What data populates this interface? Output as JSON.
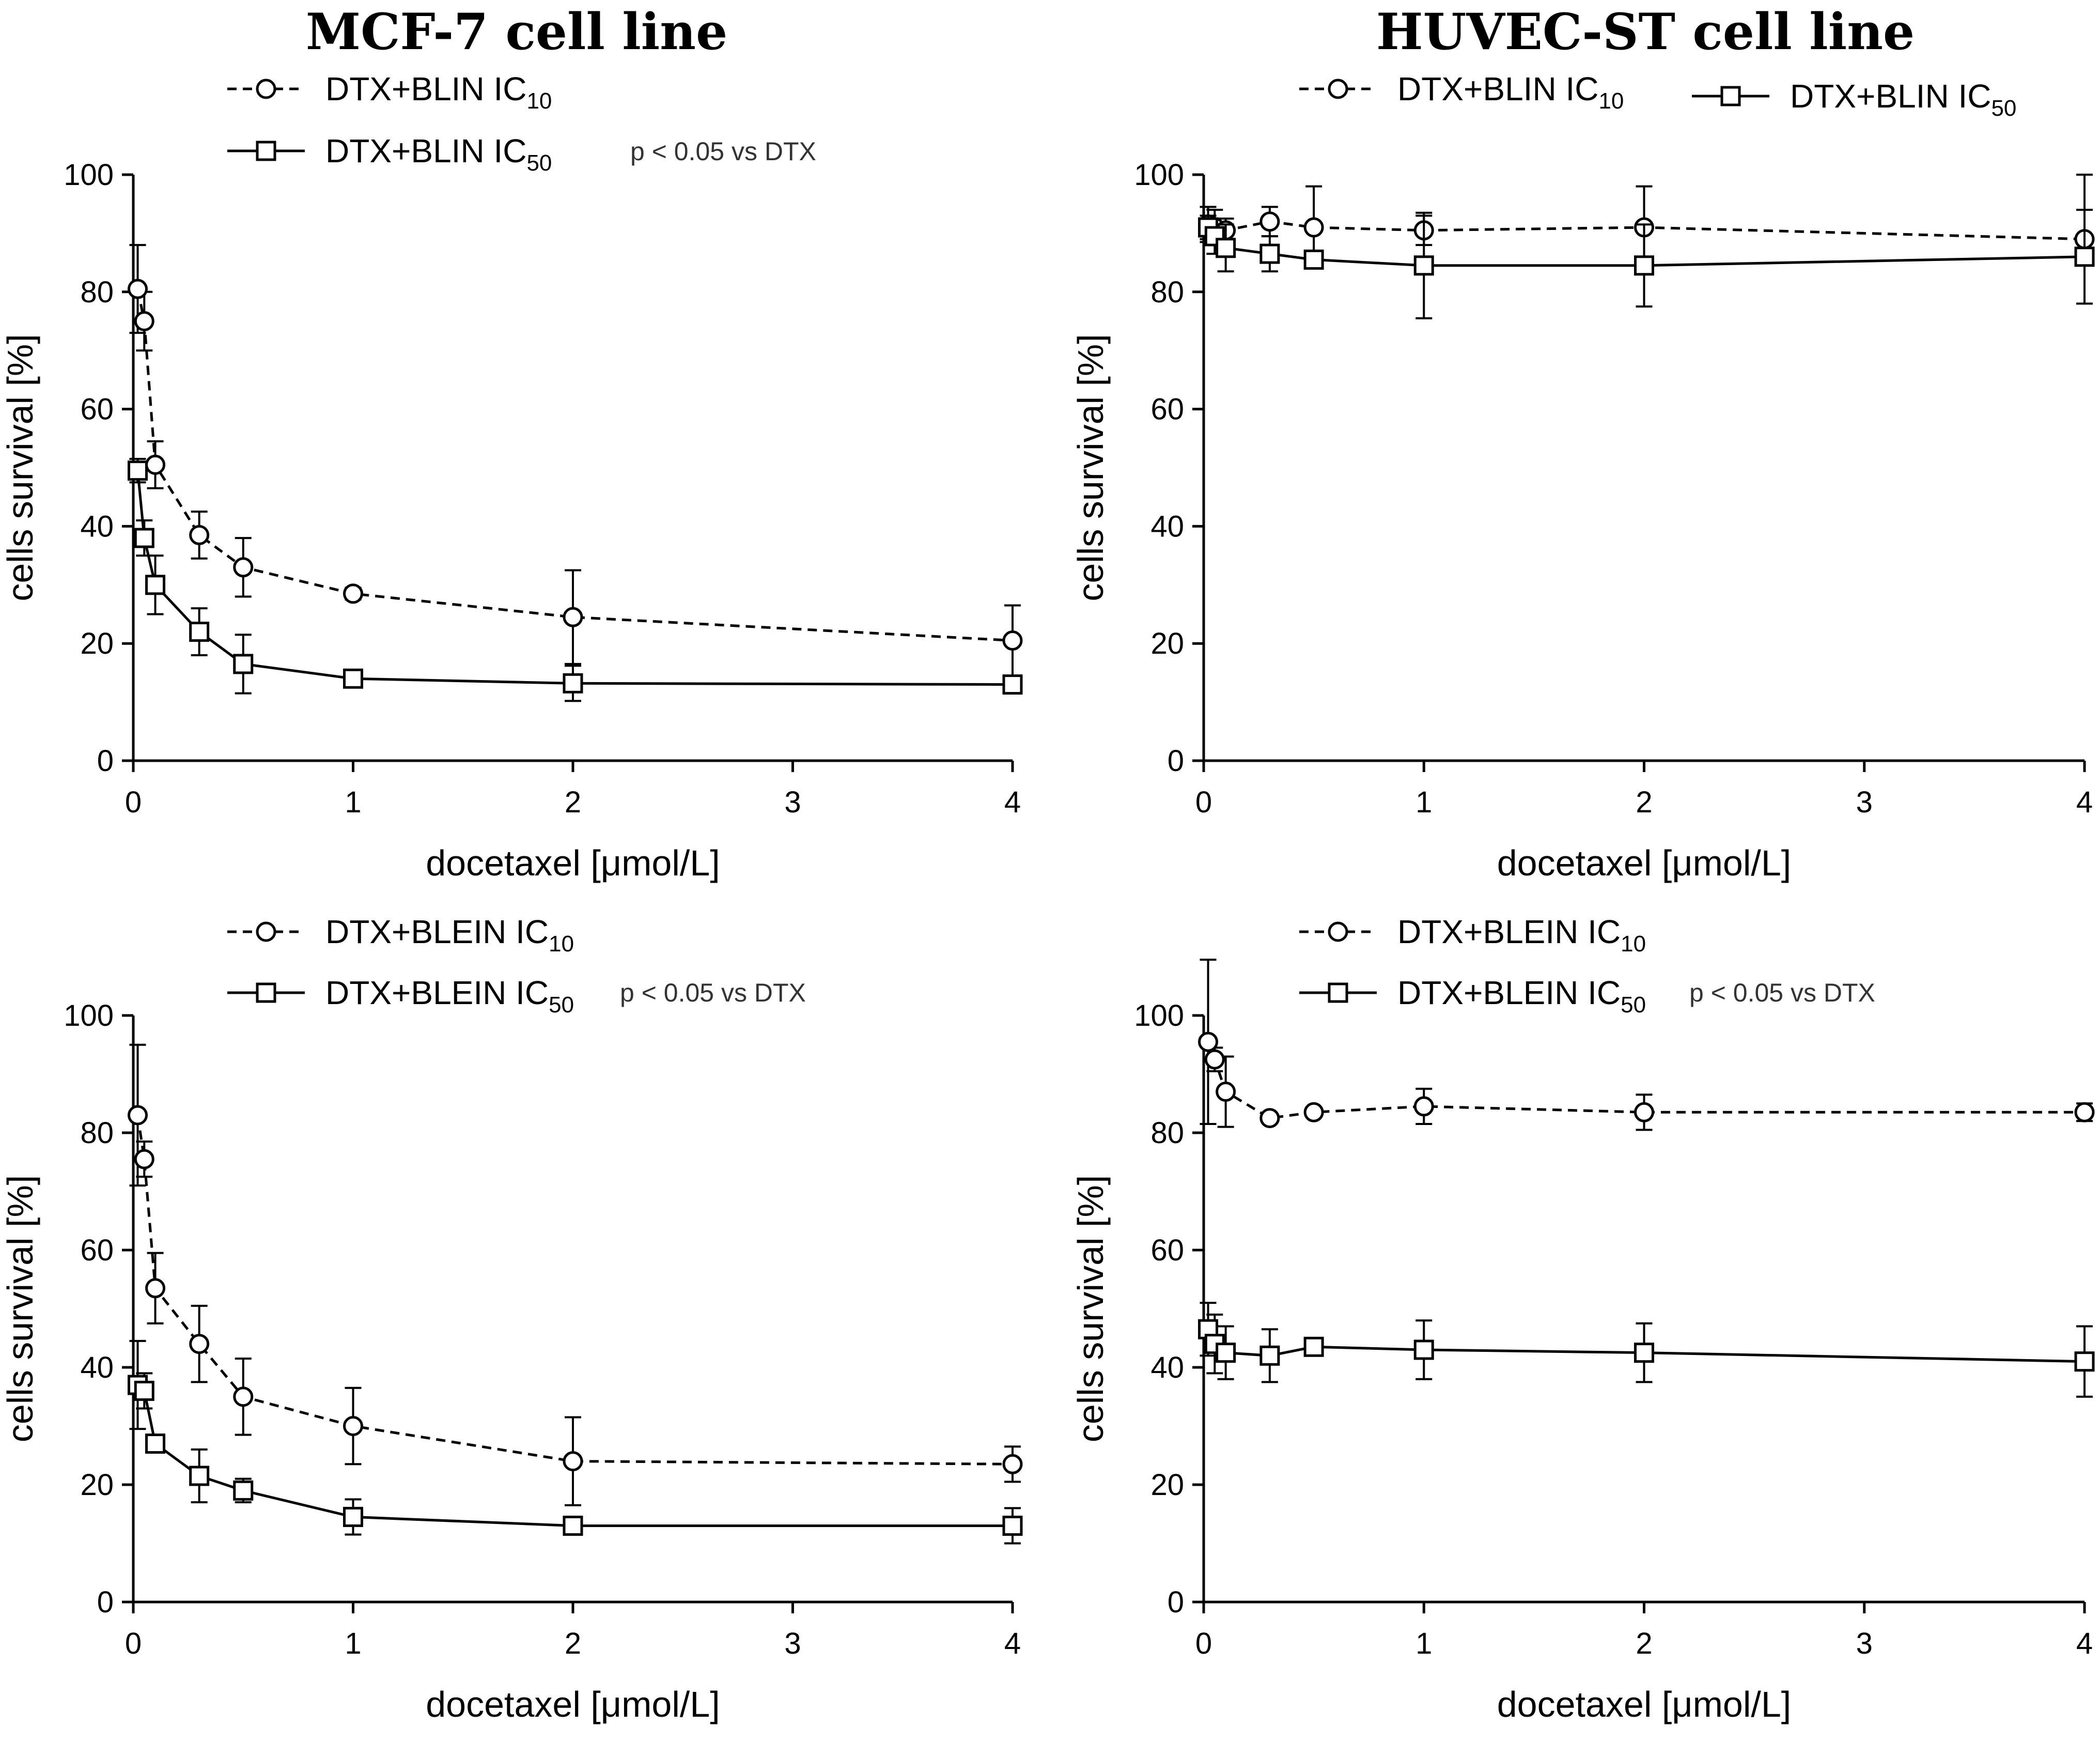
{
  "column_titles": [
    "MCF-7 cell line",
    "HUVEC-ST cell line"
  ],
  "chart_data": [
    {
      "type": "line",
      "title": "MCF-7 cell line",
      "xlabel": "docetaxel [μmol/L]",
      "ylabel": "cells survival [%]",
      "xlim": [
        0,
        4
      ],
      "ylim": [
        0,
        100
      ],
      "xticks": [
        0,
        1,
        2,
        3,
        4
      ],
      "yticks": [
        0,
        20,
        40,
        60,
        80,
        100
      ],
      "annotation": "p < 0.05 vs DTX",
      "series": [
        {
          "name": "DTX+BLIN IC10",
          "label_main": "DTX+BLIN IC",
          "label_sub": "10",
          "marker": "circle",
          "style": "dashed",
          "x": [
            0.02,
            0.05,
            0.1,
            0.3,
            0.5,
            1,
            2,
            4
          ],
          "y": [
            80.5,
            75,
            50.5,
            38.5,
            33,
            28.5,
            24.5,
            20.5
          ],
          "err": [
            7.5,
            5,
            4,
            4,
            5,
            1,
            8,
            6
          ]
        },
        {
          "name": "DTX+BLIN IC50",
          "label_main": "DTX+BLIN IC",
          "label_sub": "50",
          "marker": "square",
          "style": "solid",
          "x": [
            0.02,
            0.05,
            0.1,
            0.3,
            0.5,
            1,
            2,
            4
          ],
          "y": [
            49.5,
            38,
            30,
            22,
            16.5,
            14,
            13.2,
            13
          ],
          "err": [
            2,
            3,
            5,
            4,
            5,
            1,
            3,
            1
          ]
        }
      ]
    },
    {
      "type": "line",
      "title": "HUVEC-ST cell line",
      "xlabel": "docetaxel [μmol/L]",
      "ylabel": "cells survival [%]",
      "xlim": [
        0,
        4
      ],
      "ylim": [
        0,
        100
      ],
      "xticks": [
        0,
        1,
        2,
        3,
        4
      ],
      "yticks": [
        0,
        20,
        40,
        60,
        80,
        100
      ],
      "annotation": "",
      "series": [
        {
          "name": "DTX+BLIN IC10",
          "label_main": "DTX+BLIN IC",
          "label_sub": "10",
          "marker": "circle",
          "style": "dashed",
          "x": [
            0.02,
            0.05,
            0.1,
            0.3,
            0.5,
            1,
            2,
            4
          ],
          "y": [
            91.5,
            91,
            90.5,
            92,
            91,
            90.5,
            91,
            89
          ],
          "err": [
            3,
            3,
            2,
            2.5,
            7,
            2.5,
            7,
            11
          ]
        },
        {
          "name": "DTX+BLIN IC50",
          "label_main": "DTX+BLIN IC",
          "label_sub": "50",
          "marker": "square",
          "style": "solid",
          "x": [
            0.02,
            0.05,
            0.1,
            0.3,
            0.5,
            1,
            2,
            4
          ],
          "y": [
            91,
            89.5,
            87.5,
            86.5,
            85.5,
            84.5,
            84.5,
            86
          ],
          "err": [
            2,
            3,
            4,
            3,
            1,
            9,
            7,
            8
          ]
        }
      ]
    },
    {
      "type": "line",
      "title": "",
      "xlabel": "docetaxel [μmol/L]",
      "ylabel": "cells survival [%]",
      "xlim": [
        0,
        4
      ],
      "ylim": [
        0,
        100
      ],
      "xticks": [
        0,
        1,
        2,
        3,
        4
      ],
      "yticks": [
        0,
        20,
        40,
        60,
        80,
        100
      ],
      "annotation": "p < 0.05 vs DTX",
      "series": [
        {
          "name": "DTX+BLEIN IC10",
          "label_main": "DTX+BLEIN IC",
          "label_sub": "10",
          "marker": "circle",
          "style": "dashed",
          "x": [
            0.02,
            0.05,
            0.1,
            0.3,
            0.5,
            1,
            2,
            4
          ],
          "y": [
            83,
            75.5,
            53.5,
            44,
            35,
            30,
            24,
            23.5
          ],
          "err": [
            12,
            3,
            6,
            6.5,
            6.5,
            6.5,
            7.5,
            3
          ]
        },
        {
          "name": "DTX+BLEIN IC50",
          "label_main": "DTX+BLEIN IC",
          "label_sub": "50",
          "marker": "square",
          "style": "solid",
          "x": [
            0.02,
            0.05,
            0.1,
            0.3,
            0.5,
            1,
            2,
            4
          ],
          "y": [
            37,
            36,
            27,
            21.5,
            19,
            14.5,
            13,
            13
          ],
          "err": [
            7.5,
            3,
            1,
            4.5,
            2,
            3,
            1,
            3
          ]
        }
      ]
    },
    {
      "type": "line",
      "title": "",
      "xlabel": "docetaxel [μmol/L]",
      "ylabel": "cells survival [%]",
      "xlim": [
        0,
        4
      ],
      "ylim": [
        0,
        100
      ],
      "xticks": [
        0,
        1,
        2,
        3,
        4
      ],
      "yticks": [
        0,
        20,
        40,
        60,
        80,
        100
      ],
      "annotation": "p < 0.05 vs DTX",
      "series": [
        {
          "name": "DTX+BLEIN IC10",
          "label_main": "DTX+BLEIN IC",
          "label_sub": "10",
          "marker": "circle",
          "style": "dashed",
          "x": [
            0.02,
            0.05,
            0.1,
            0.3,
            0.5,
            1,
            2,
            4
          ],
          "y": [
            95.5,
            92.5,
            87,
            82.5,
            83.5,
            84.5,
            83.5,
            83.5
          ],
          "err": [
            14,
            2,
            6,
            0.5,
            0.5,
            3,
            3,
            1.5
          ]
        },
        {
          "name": "DTX+BLEIN IC50",
          "label_main": "DTX+BLEIN IC",
          "label_sub": "50",
          "marker": "square",
          "style": "solid",
          "x": [
            0.02,
            0.05,
            0.1,
            0.3,
            0.5,
            1,
            2,
            4
          ],
          "y": [
            46.5,
            44,
            42.5,
            42,
            43.5,
            43,
            42.5,
            41
          ],
          "err": [
            4.5,
            5,
            4.5,
            4.5,
            1,
            5,
            5,
            6
          ]
        }
      ]
    }
  ]
}
